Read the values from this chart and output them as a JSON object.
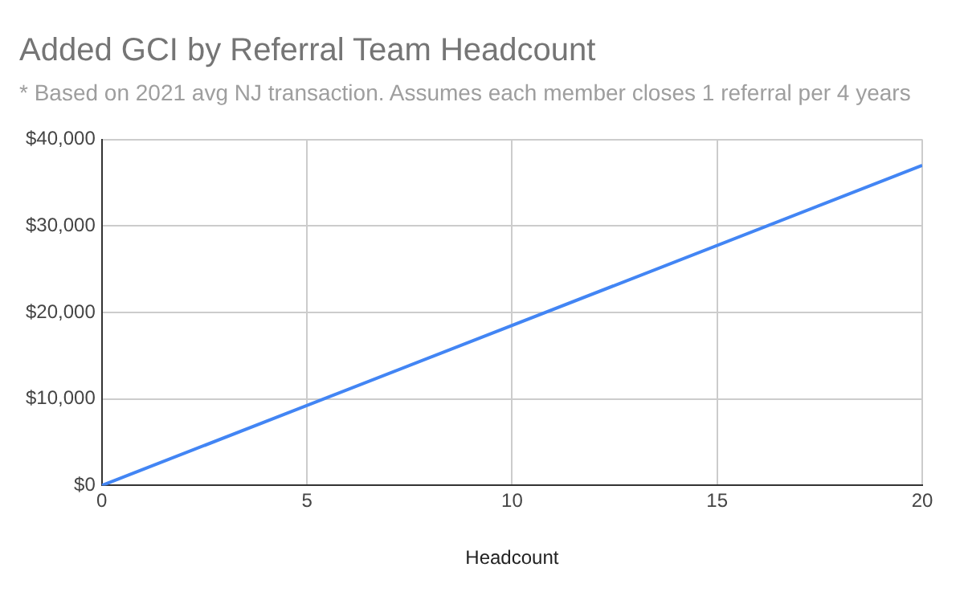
{
  "chart_data": {
    "type": "line",
    "title": "Added GCI by Referral Team Headcount",
    "subtitle": "* Based on 2021 avg NJ transaction. Assumes each member closes 1 referral per 4 years",
    "xlabel": "Headcount",
    "x": [
      0,
      20
    ],
    "series": [
      {
        "color": "#4285f4",
        "values": [
          0,
          37000
        ]
      }
    ],
    "xlim": [
      0,
      20
    ],
    "xticks": [
      0,
      5,
      10,
      15,
      20
    ],
    "ylim": [
      0,
      40000
    ],
    "yticks": [
      {
        "value": 0,
        "label": "$0"
      },
      {
        "value": 10000,
        "label": "$10,000"
      },
      {
        "value": 20000,
        "label": "$20,000"
      },
      {
        "value": 30000,
        "label": "$30,000"
      },
      {
        "value": 40000,
        "label": "$40,000"
      }
    ],
    "grid": true,
    "legend": false,
    "marker": "none",
    "line_style": "solid"
  }
}
